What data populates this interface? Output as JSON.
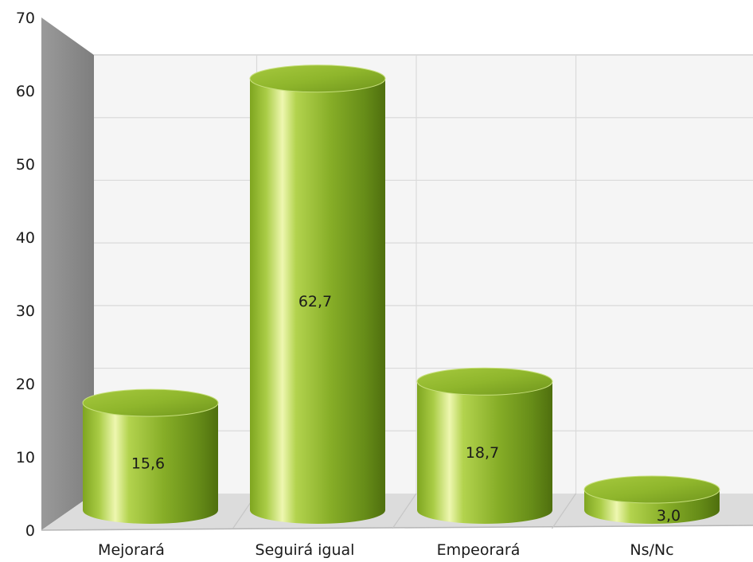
{
  "chart_data": {
    "type": "bar",
    "style": "3d-cylinder",
    "title": "",
    "xlabel": "",
    "ylabel": "",
    "categories": [
      "Mejorará",
      "Seguirá igual",
      "Empeorará",
      "Ns/Nc"
    ],
    "values": [
      15.6,
      62.7,
      18.7,
      3.0
    ],
    "value_labels": [
      "15,6",
      "62,7",
      "18,7",
      "3,0"
    ],
    "ylim": [
      0,
      70
    ],
    "yticks": [
      0,
      10,
      20,
      30,
      40,
      50,
      60,
      70
    ],
    "ytick_labels": [
      "0",
      "10",
      "20",
      "30",
      "40",
      "50",
      "60",
      "70"
    ],
    "grid": true,
    "legend": "none",
    "bar_color": "#8db52a",
    "bar_highlight": "#eef7b0",
    "bar_shadow": "#4f6f0e",
    "wall_color": "#f4f4f4",
    "side_wall_color": "#8a8a8a",
    "floor_color": "#dcdcdc"
  }
}
